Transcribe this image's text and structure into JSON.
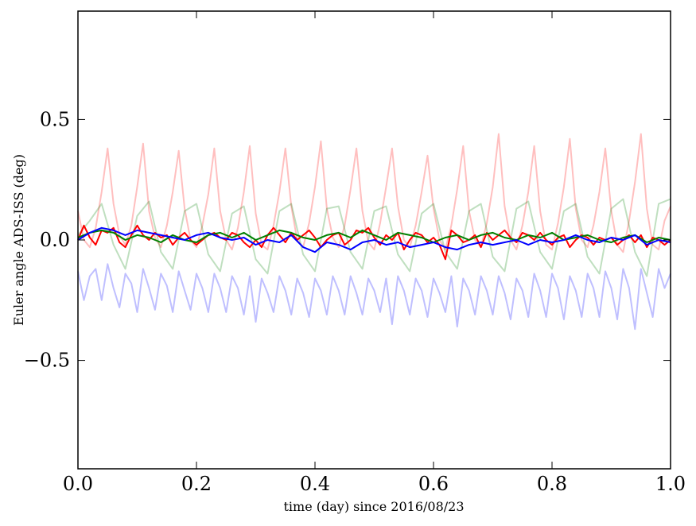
{
  "chart_data": {
    "type": "line",
    "xlabel": "time (day) since 2016/08/23",
    "ylabel": "Euler angle ADS-ISS (deg)",
    "xlim": [
      0.0,
      1.0
    ],
    "ylim": [
      -0.95,
      0.95
    ],
    "x_ticks": [
      "0.0",
      "0.2",
      "0.4",
      "0.6",
      "0.8",
      "1.0"
    ],
    "y_ticks": [
      "−0.5",
      "0.0",
      "0.5"
    ],
    "grid": false,
    "legend": "none",
    "series": [
      {
        "color": "#ff0000",
        "opacity": 0.25,
        "style": "faint",
        "x": [
          0.0,
          0.01,
          0.02,
          0.03,
          0.04,
          0.05,
          0.06,
          0.07,
          0.08,
          0.09,
          0.1,
          0.11,
          0.12,
          0.13,
          0.14,
          0.15,
          0.16,
          0.17,
          0.18,
          0.19,
          0.2,
          0.21,
          0.22,
          0.23,
          0.24,
          0.25,
          0.26,
          0.27,
          0.28,
          0.29,
          0.3,
          0.31,
          0.32,
          0.33,
          0.34,
          0.35,
          0.36,
          0.37,
          0.38,
          0.39,
          0.4,
          0.41,
          0.42,
          0.43,
          0.44,
          0.45,
          0.46,
          0.47,
          0.48,
          0.49,
          0.5,
          0.51,
          0.52,
          0.53,
          0.54,
          0.55,
          0.56,
          0.57,
          0.58,
          0.59,
          0.6,
          0.61,
          0.62,
          0.63,
          0.64,
          0.65,
          0.66,
          0.67,
          0.68,
          0.69,
          0.7,
          0.71,
          0.72,
          0.73,
          0.74,
          0.75,
          0.76,
          0.77,
          0.78,
          0.79,
          0.8,
          0.81,
          0.82,
          0.83,
          0.84,
          0.85,
          0.86,
          0.87,
          0.88,
          0.89,
          0.9,
          0.91,
          0.92,
          0.93,
          0.94,
          0.95,
          0.96,
          0.97,
          0.98,
          0.99,
          1.0
        ],
        "y": [
          0.12,
          0.0,
          -0.03,
          0.05,
          0.2,
          0.38,
          0.15,
          0.02,
          -0.02,
          0.06,
          0.22,
          0.4,
          0.12,
          0.01,
          -0.03,
          0.06,
          0.2,
          0.37,
          0.13,
          0.0,
          -0.03,
          0.06,
          0.19,
          0.38,
          0.12,
          0.0,
          -0.04,
          0.05,
          0.2,
          0.39,
          0.11,
          -0.02,
          -0.04,
          0.06,
          0.2,
          0.38,
          0.14,
          0.0,
          -0.03,
          0.07,
          0.22,
          0.41,
          0.13,
          0.01,
          -0.03,
          0.06,
          0.21,
          0.38,
          0.12,
          -0.01,
          -0.04,
          0.07,
          0.22,
          0.38,
          0.14,
          0.0,
          -0.03,
          0.06,
          0.2,
          0.35,
          0.13,
          0.0,
          -0.04,
          0.06,
          0.21,
          0.39,
          0.12,
          0.0,
          -0.03,
          0.07,
          0.22,
          0.44,
          0.14,
          0.0,
          -0.04,
          0.06,
          0.2,
          0.39,
          0.12,
          -0.02,
          -0.04,
          0.07,
          0.22,
          0.42,
          0.13,
          0.0,
          -0.03,
          0.06,
          0.2,
          0.38,
          0.12,
          -0.02,
          -0.05,
          0.08,
          0.24,
          0.44,
          0.13,
          -0.02,
          -0.04,
          0.08,
          0.14
        ]
      },
      {
        "color": "#008000",
        "opacity": 0.25,
        "style": "faint",
        "x": [
          0.0,
          0.02,
          0.04,
          0.06,
          0.08,
          0.1,
          0.12,
          0.14,
          0.16,
          0.18,
          0.2,
          0.22,
          0.24,
          0.26,
          0.28,
          0.3,
          0.32,
          0.34,
          0.36,
          0.38,
          0.4,
          0.42,
          0.44,
          0.46,
          0.48,
          0.5,
          0.52,
          0.54,
          0.56,
          0.58,
          0.6,
          0.62,
          0.64,
          0.66,
          0.68,
          0.7,
          0.72,
          0.74,
          0.76,
          0.78,
          0.8,
          0.82,
          0.84,
          0.86,
          0.88,
          0.9,
          0.92,
          0.94,
          0.96,
          0.98,
          1.0
        ],
        "y": [
          0.02,
          0.08,
          0.15,
          -0.02,
          -0.12,
          0.1,
          0.16,
          -0.05,
          -0.12,
          0.12,
          0.15,
          -0.06,
          -0.13,
          0.11,
          0.14,
          -0.08,
          -0.14,
          0.12,
          0.15,
          -0.06,
          -0.13,
          0.13,
          0.14,
          -0.05,
          -0.12,
          0.12,
          0.14,
          -0.06,
          -0.13,
          0.11,
          0.15,
          -0.05,
          -0.12,
          0.12,
          0.15,
          -0.07,
          -0.13,
          0.13,
          0.16,
          -0.05,
          -0.12,
          0.12,
          0.15,
          -0.07,
          -0.14,
          0.13,
          0.17,
          -0.05,
          -0.15,
          0.15,
          0.17
        ]
      },
      {
        "color": "#0000ff",
        "opacity": 0.25,
        "style": "faint",
        "x": [
          0.0,
          0.01,
          0.02,
          0.03,
          0.04,
          0.05,
          0.06,
          0.07,
          0.08,
          0.09,
          0.1,
          0.11,
          0.12,
          0.13,
          0.14,
          0.15,
          0.16,
          0.17,
          0.18,
          0.19,
          0.2,
          0.21,
          0.22,
          0.23,
          0.24,
          0.25,
          0.26,
          0.27,
          0.28,
          0.29,
          0.3,
          0.31,
          0.32,
          0.33,
          0.34,
          0.35,
          0.36,
          0.37,
          0.38,
          0.39,
          0.4,
          0.41,
          0.42,
          0.43,
          0.44,
          0.45,
          0.46,
          0.47,
          0.48,
          0.49,
          0.5,
          0.51,
          0.52,
          0.53,
          0.54,
          0.55,
          0.56,
          0.57,
          0.58,
          0.59,
          0.6,
          0.61,
          0.62,
          0.63,
          0.64,
          0.65,
          0.66,
          0.67,
          0.68,
          0.69,
          0.7,
          0.71,
          0.72,
          0.73,
          0.74,
          0.75,
          0.76,
          0.77,
          0.78,
          0.79,
          0.8,
          0.81,
          0.82,
          0.83,
          0.84,
          0.85,
          0.86,
          0.87,
          0.88,
          0.89,
          0.9,
          0.91,
          0.92,
          0.93,
          0.94,
          0.95,
          0.96,
          0.97,
          0.98,
          0.99,
          1.0
        ],
        "y": [
          -0.13,
          -0.25,
          -0.15,
          -0.12,
          -0.25,
          -0.1,
          -0.2,
          -0.28,
          -0.14,
          -0.18,
          -0.3,
          -0.12,
          -0.2,
          -0.29,
          -0.14,
          -0.19,
          -0.3,
          -0.13,
          -0.21,
          -0.29,
          -0.14,
          -0.2,
          -0.3,
          -0.14,
          -0.2,
          -0.3,
          -0.15,
          -0.2,
          -0.31,
          -0.15,
          -0.34,
          -0.16,
          -0.22,
          -0.3,
          -0.15,
          -0.21,
          -0.31,
          -0.16,
          -0.22,
          -0.32,
          -0.16,
          -0.21,
          -0.31,
          -0.15,
          -0.21,
          -0.31,
          -0.15,
          -0.22,
          -0.31,
          -0.16,
          -0.21,
          -0.3,
          -0.16,
          -0.35,
          -0.15,
          -0.21,
          -0.31,
          -0.16,
          -0.21,
          -0.32,
          -0.16,
          -0.22,
          -0.3,
          -0.15,
          -0.36,
          -0.16,
          -0.21,
          -0.31,
          -0.15,
          -0.21,
          -0.31,
          -0.15,
          -0.22,
          -0.33,
          -0.16,
          -0.21,
          -0.32,
          -0.14,
          -0.21,
          -0.32,
          -0.14,
          -0.2,
          -0.33,
          -0.15,
          -0.21,
          -0.32,
          -0.14,
          -0.2,
          -0.32,
          -0.13,
          -0.2,
          -0.33,
          -0.12,
          -0.2,
          -0.37,
          -0.12,
          -0.22,
          -0.32,
          -0.12,
          -0.2,
          -0.14
        ]
      },
      {
        "color": "#ff0000",
        "opacity": 1.0,
        "style": "solid",
        "x": [
          0.0,
          0.01,
          0.02,
          0.03,
          0.04,
          0.05,
          0.06,
          0.07,
          0.08,
          0.09,
          0.1,
          0.11,
          0.12,
          0.13,
          0.14,
          0.15,
          0.16,
          0.17,
          0.18,
          0.19,
          0.2,
          0.21,
          0.22,
          0.23,
          0.24,
          0.25,
          0.26,
          0.27,
          0.28,
          0.29,
          0.3,
          0.31,
          0.32,
          0.33,
          0.34,
          0.35,
          0.36,
          0.37,
          0.38,
          0.39,
          0.4,
          0.41,
          0.42,
          0.43,
          0.44,
          0.45,
          0.46,
          0.47,
          0.48,
          0.49,
          0.5,
          0.51,
          0.52,
          0.53,
          0.54,
          0.55,
          0.56,
          0.57,
          0.58,
          0.59,
          0.6,
          0.61,
          0.62,
          0.63,
          0.64,
          0.65,
          0.66,
          0.67,
          0.68,
          0.69,
          0.7,
          0.71,
          0.72,
          0.73,
          0.74,
          0.75,
          0.76,
          0.77,
          0.78,
          0.79,
          0.8,
          0.81,
          0.82,
          0.83,
          0.84,
          0.85,
          0.86,
          0.87,
          0.88,
          0.89,
          0.9,
          0.91,
          0.92,
          0.93,
          0.94,
          0.95,
          0.96,
          0.97,
          0.98,
          0.99,
          1.0
        ],
        "y": [
          0.0,
          0.06,
          0.01,
          -0.02,
          0.04,
          0.03,
          0.05,
          -0.01,
          -0.03,
          0.02,
          0.06,
          0.02,
          0.0,
          0.03,
          0.01,
          0.02,
          -0.02,
          0.01,
          0.03,
          0.0,
          -0.02,
          0.0,
          0.02,
          0.03,
          0.01,
          0.0,
          0.03,
          0.02,
          -0.01,
          -0.03,
          0.0,
          -0.03,
          0.02,
          0.05,
          0.02,
          -0.01,
          0.03,
          0.0,
          0.02,
          0.04,
          0.01,
          -0.03,
          0.0,
          0.02,
          0.03,
          -0.02,
          0.0,
          0.04,
          0.03,
          0.05,
          0.01,
          -0.02,
          0.02,
          0.0,
          0.03,
          -0.04,
          0.0,
          0.03,
          0.02,
          -0.01,
          0.01,
          -0.02,
          -0.08,
          0.04,
          0.02,
          -0.01,
          0.0,
          0.02,
          -0.03,
          0.03,
          0.0,
          0.02,
          0.04,
          0.01,
          -0.01,
          0.03,
          0.02,
          0.0,
          0.03,
          0.0,
          -0.02,
          0.01,
          0.02,
          -0.03,
          0.0,
          0.02,
          0.01,
          -0.02,
          0.01,
          0.0,
          0.01,
          -0.02,
          0.0,
          0.02,
          -0.01,
          0.02,
          -0.03,
          0.01,
          0.0,
          -0.02,
          0.0
        ]
      },
      {
        "color": "#008000",
        "opacity": 1.0,
        "style": "solid",
        "x": [
          0.0,
          0.02,
          0.04,
          0.06,
          0.08,
          0.1,
          0.12,
          0.14,
          0.16,
          0.18,
          0.2,
          0.22,
          0.24,
          0.26,
          0.28,
          0.3,
          0.32,
          0.34,
          0.36,
          0.38,
          0.4,
          0.42,
          0.44,
          0.46,
          0.48,
          0.5,
          0.52,
          0.54,
          0.56,
          0.58,
          0.6,
          0.62,
          0.64,
          0.66,
          0.68,
          0.7,
          0.72,
          0.74,
          0.76,
          0.78,
          0.8,
          0.82,
          0.84,
          0.86,
          0.88,
          0.9,
          0.92,
          0.94,
          0.96,
          0.98,
          1.0
        ],
        "y": [
          0.01,
          0.03,
          0.04,
          0.03,
          0.0,
          0.02,
          0.01,
          -0.01,
          0.02,
          0.0,
          -0.01,
          0.02,
          0.03,
          0.01,
          0.03,
          0.0,
          0.02,
          0.04,
          0.03,
          0.01,
          0.0,
          0.02,
          0.03,
          0.01,
          0.04,
          0.02,
          0.0,
          0.03,
          0.02,
          0.01,
          -0.01,
          0.01,
          0.02,
          0.0,
          0.02,
          0.03,
          0.01,
          0.0,
          0.02,
          0.01,
          0.03,
          0.0,
          0.01,
          0.02,
          0.0,
          -0.01,
          0.01,
          0.02,
          -0.01,
          0.01,
          0.0
        ]
      },
      {
        "color": "#0000ff",
        "opacity": 1.0,
        "style": "solid",
        "x": [
          0.0,
          0.02,
          0.04,
          0.06,
          0.08,
          0.1,
          0.12,
          0.14,
          0.16,
          0.18,
          0.2,
          0.22,
          0.24,
          0.26,
          0.28,
          0.3,
          0.32,
          0.34,
          0.36,
          0.38,
          0.4,
          0.42,
          0.44,
          0.46,
          0.48,
          0.5,
          0.52,
          0.54,
          0.56,
          0.58,
          0.6,
          0.62,
          0.64,
          0.66,
          0.68,
          0.7,
          0.72,
          0.74,
          0.76,
          0.78,
          0.8,
          0.82,
          0.84,
          0.86,
          0.88,
          0.9,
          0.92,
          0.94,
          0.96,
          0.98,
          1.0
        ],
        "y": [
          0.0,
          0.03,
          0.05,
          0.04,
          0.02,
          0.04,
          0.03,
          0.02,
          0.01,
          0.0,
          0.02,
          0.03,
          0.01,
          0.0,
          0.01,
          -0.02,
          0.0,
          -0.01,
          0.02,
          -0.03,
          -0.05,
          -0.01,
          -0.02,
          -0.04,
          -0.01,
          0.0,
          -0.02,
          -0.01,
          -0.03,
          -0.02,
          -0.01,
          -0.03,
          -0.04,
          -0.02,
          -0.01,
          -0.02,
          -0.01,
          0.0,
          -0.02,
          0.0,
          -0.01,
          0.0,
          0.02,
          0.0,
          -0.01,
          0.01,
          0.0,
          0.02,
          -0.02,
          0.0,
          -0.01
        ]
      }
    ]
  }
}
